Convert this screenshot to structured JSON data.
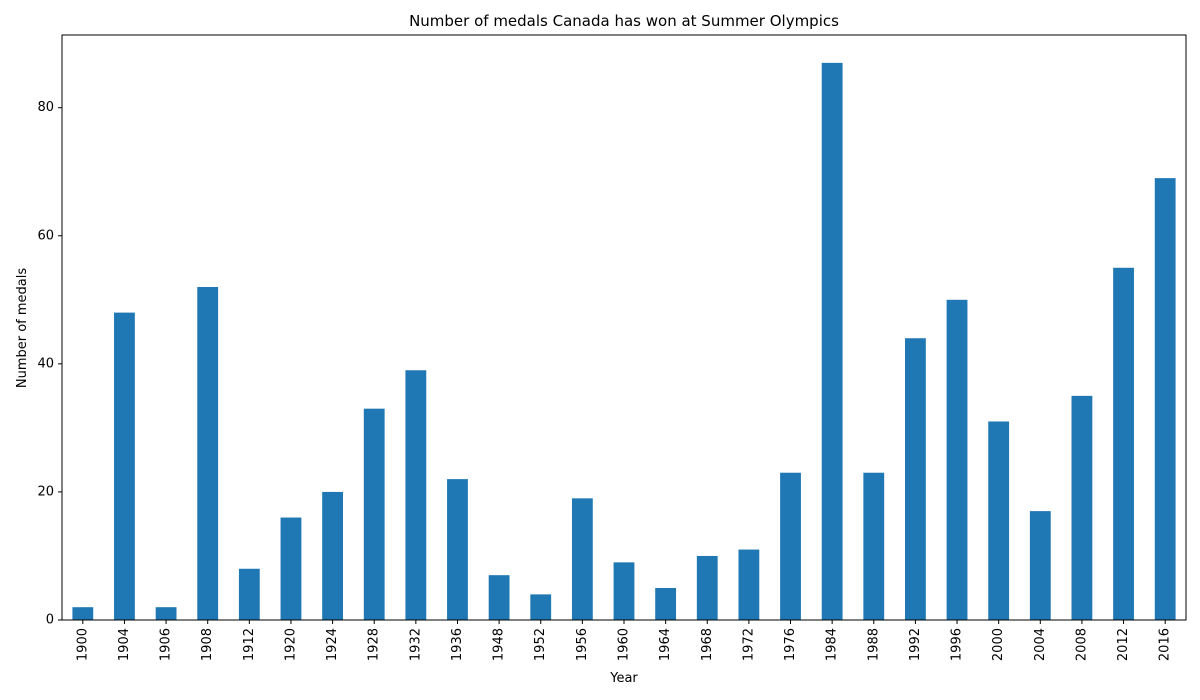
{
  "chart_data": {
    "type": "bar",
    "title": "Number of medals Canada has won at Summer Olympics",
    "xlabel": "Year",
    "ylabel": "Number of medals",
    "categories": [
      "1900",
      "1904",
      "1906",
      "1908",
      "1912",
      "1920",
      "1924",
      "1928",
      "1932",
      "1936",
      "1948",
      "1952",
      "1956",
      "1960",
      "1964",
      "1968",
      "1972",
      "1976",
      "1984",
      "1988",
      "1992",
      "1996",
      "2000",
      "2004",
      "2008",
      "2012",
      "2016"
    ],
    "values": [
      2,
      48,
      2,
      52,
      8,
      16,
      20,
      33,
      39,
      22,
      7,
      4,
      19,
      9,
      5,
      10,
      11,
      23,
      87,
      23,
      44,
      50,
      31,
      17,
      35,
      55,
      69
    ],
    "ylim": [
      0,
      91.35
    ],
    "yticks": [
      0,
      20,
      40,
      60,
      80
    ],
    "grid": false,
    "legend": "none",
    "bar_color": "#1f77b4"
  }
}
